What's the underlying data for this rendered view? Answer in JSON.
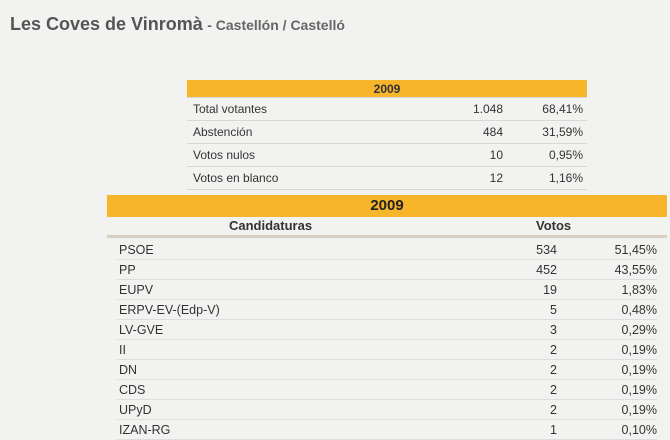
{
  "header": {
    "town": "Les Coves de Vinromà",
    "province": "- Castellón / Castelló"
  },
  "summary": {
    "year": "2009",
    "rows": [
      {
        "label": "Total votantes",
        "value": "1.048",
        "pct": "68,41%"
      },
      {
        "label": "Abstención",
        "value": "484",
        "pct": "31,59%"
      },
      {
        "label": "Votos nulos",
        "value": "10",
        "pct": "0,95%"
      },
      {
        "label": "Votos en blanco",
        "value": "12",
        "pct": "1,16%"
      }
    ]
  },
  "results": {
    "year": "2009",
    "col_candidaturas": "Candidaturas",
    "col_votos": "Votos",
    "rows": [
      {
        "party": "PSOE",
        "votes": "534",
        "pct": "51,45%"
      },
      {
        "party": "PP",
        "votes": "452",
        "pct": "43,55%"
      },
      {
        "party": "EUPV",
        "votes": "19",
        "pct": "1,83%"
      },
      {
        "party": "ERPV-EV-(Edp-V)",
        "votes": "5",
        "pct": "0,48%"
      },
      {
        "party": "LV-GVE",
        "votes": "3",
        "pct": "0,29%"
      },
      {
        "party": "II",
        "votes": "2",
        "pct": "0,19%"
      },
      {
        "party": "DN",
        "votes": "2",
        "pct": "0,19%"
      },
      {
        "party": "CDS",
        "votes": "2",
        "pct": "0,19%"
      },
      {
        "party": "UPyD",
        "votes": "2",
        "pct": "0,19%"
      },
      {
        "party": "IZAN-RG",
        "votes": "1",
        "pct": "0,10%"
      }
    ]
  }
}
